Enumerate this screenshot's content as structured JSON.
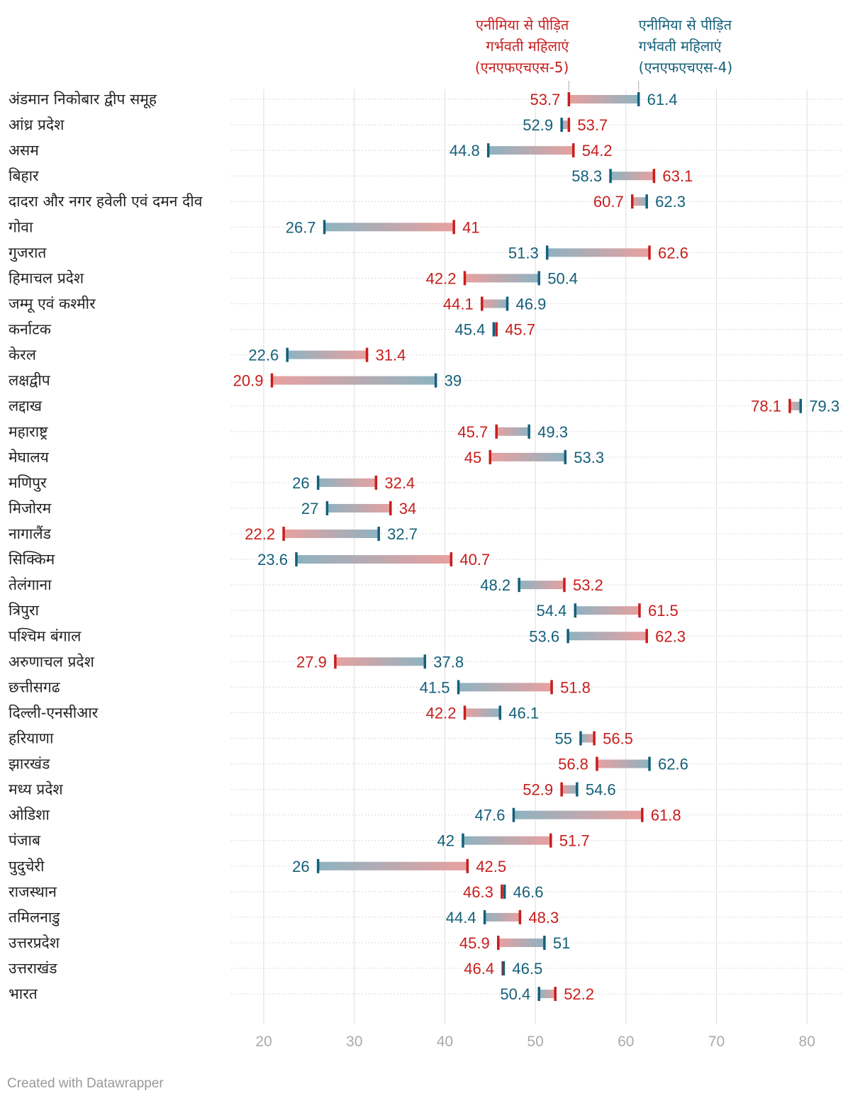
{
  "colors": {
    "nfhs5": "#c71e1d",
    "nfhs4": "#15607a",
    "grid": "#dddddd",
    "tick": "#aaaaaa"
  },
  "chart_data": {
    "type": "range-dot",
    "title": "",
    "legend": {
      "nfhs5": [
        "एनीमिया से पीड़ित",
        "गर्भवती महिलाएं",
        "(एनएफएचएस-5)"
      ],
      "nfhs4": [
        "एनीमिया से पीड़ित",
        "गर्भवती महिलाएं",
        "(एनएफएचएस-4)"
      ]
    },
    "xlim": [
      16.5,
      84
    ],
    "xticks": [
      20,
      30,
      40,
      50,
      60,
      70,
      80
    ],
    "rows": [
      {
        "name": "अंडमान निकोबार द्वीप समूह",
        "nfhs5": 53.7,
        "nfhs4": 61.4
      },
      {
        "name": "आंध्र प्रदेश",
        "nfhs5": 53.7,
        "nfhs4": 52.9
      },
      {
        "name": "असम",
        "nfhs5": 54.2,
        "nfhs4": 44.8
      },
      {
        "name": "बिहार",
        "nfhs5": 63.1,
        "nfhs4": 58.3
      },
      {
        "name": "दादरा और नगर हवेली एवं दमन दीव",
        "nfhs5": 60.7,
        "nfhs4": 62.3
      },
      {
        "name": "गोवा",
        "nfhs5": 41,
        "nfhs4": 26.7
      },
      {
        "name": "गुजरात",
        "nfhs5": 62.6,
        "nfhs4": 51.3
      },
      {
        "name": "हिमाचल प्रदेश",
        "nfhs5": 42.2,
        "nfhs4": 50.4
      },
      {
        "name": "जम्मू एवं कश्मीर",
        "nfhs5": 44.1,
        "nfhs4": 46.9
      },
      {
        "name": "कर्नाटक",
        "nfhs5": 45.7,
        "nfhs4": 45.4
      },
      {
        "name": "केरल",
        "nfhs5": 31.4,
        "nfhs4": 22.6
      },
      {
        "name": "लक्षद्वीप",
        "nfhs5": 20.9,
        "nfhs4": 39
      },
      {
        "name": "लद्दाख",
        "nfhs5": 78.1,
        "nfhs4": 79.3
      },
      {
        "name": "महाराष्ट्र",
        "nfhs5": 45.7,
        "nfhs4": 49.3
      },
      {
        "name": "मेघालय",
        "nfhs5": 45,
        "nfhs4": 53.3
      },
      {
        "name": "मणिपुर",
        "nfhs5": 32.4,
        "nfhs4": 26
      },
      {
        "name": "मिजोरम",
        "nfhs5": 34,
        "nfhs4": 27
      },
      {
        "name": "नागालैंड",
        "nfhs5": 22.2,
        "nfhs4": 32.7
      },
      {
        "name": "सिक्किम",
        "nfhs5": 40.7,
        "nfhs4": 23.6
      },
      {
        "name": "तेलंगाना",
        "nfhs5": 53.2,
        "nfhs4": 48.2
      },
      {
        "name": "त्रिपुरा",
        "nfhs5": 61.5,
        "nfhs4": 54.4
      },
      {
        "name": "पश्चिम बंगाल",
        "nfhs5": 62.3,
        "nfhs4": 53.6
      },
      {
        "name": "अरुणाचल प्रदेश",
        "nfhs5": 27.9,
        "nfhs4": 37.8
      },
      {
        "name": "छत्तीसगढ",
        "nfhs5": 51.8,
        "nfhs4": 41.5
      },
      {
        "name": "दिल्ली-एनसीआर",
        "nfhs5": 42.2,
        "nfhs4": 46.1
      },
      {
        "name": "हरियाणा",
        "nfhs5": 56.5,
        "nfhs4": 55
      },
      {
        "name": "झारखंड",
        "nfhs5": 56.8,
        "nfhs4": 62.6
      },
      {
        "name": "मध्य प्रदेश",
        "nfhs5": 52.9,
        "nfhs4": 54.6
      },
      {
        "name": "ओडिशा",
        "nfhs5": 61.8,
        "nfhs4": 47.6
      },
      {
        "name": "पंजाब",
        "nfhs5": 51.7,
        "nfhs4": 42
      },
      {
        "name": "पुदुचेरी",
        "nfhs5": 42.5,
        "nfhs4": 26
      },
      {
        "name": "राजस्थान",
        "nfhs5": 46.3,
        "nfhs4": 46.6
      },
      {
        "name": "तमिलनाडु",
        "nfhs5": 48.3,
        "nfhs4": 44.4
      },
      {
        "name": "उत्तरप्रदेश",
        "nfhs5": 45.9,
        "nfhs4": 51
      },
      {
        "name": "उत्तराखंड",
        "nfhs5": 46.4,
        "nfhs4": 46.5
      },
      {
        "name": "भारत",
        "nfhs5": 52.2,
        "nfhs4": 50.4
      }
    ]
  },
  "footer": {
    "credit": "Created with Datawrapper"
  }
}
